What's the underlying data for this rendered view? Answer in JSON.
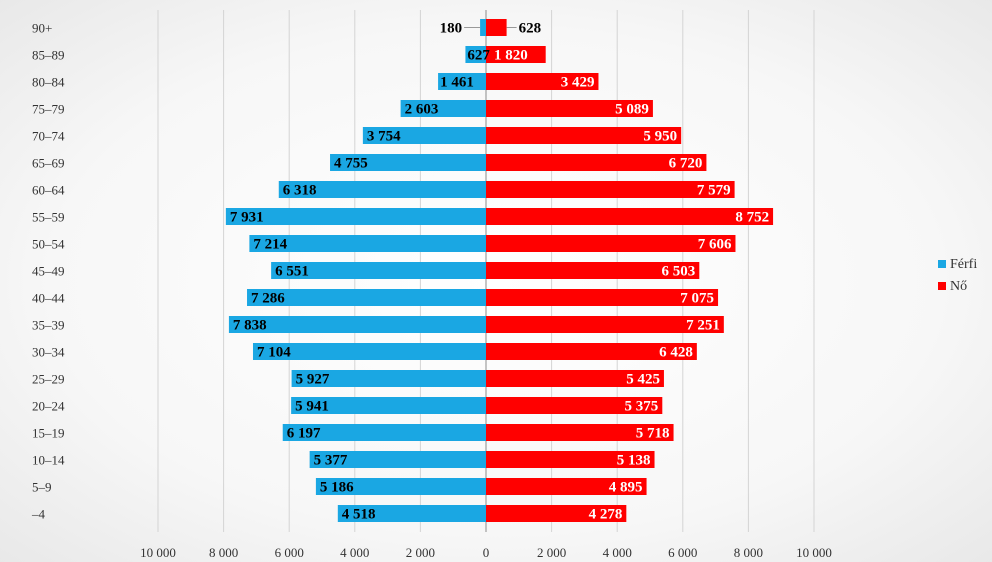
{
  "chart_data": {
    "type": "bar",
    "orientation": "horizontal",
    "layout": "population-pyramid",
    "categories": [
      "90+",
      "85–89",
      "80–84",
      "75–79",
      "70–74",
      "65–69",
      "60–64",
      "55–59",
      "50–54",
      "45–49",
      "40–44",
      "35–39",
      "30–34",
      "25–29",
      "20–24",
      "15–19",
      "10–14",
      "5–9",
      "–4"
    ],
    "series": [
      {
        "name": "Férfi",
        "color": "#1aa7e3",
        "values": [
          180,
          627,
          1461,
          2603,
          3754,
          4755,
          6318,
          7931,
          7214,
          6551,
          7286,
          7838,
          7104,
          5927,
          5941,
          6197,
          5377,
          5186,
          4518
        ],
        "labels": [
          "180",
          "627",
          "1 461",
          "2 603",
          "3 754",
          "4 755",
          "6 318",
          "7 931",
          "7 214",
          "6 551",
          "7 286",
          "7 838",
          "7 104",
          "5 927",
          "5 941",
          "6 197",
          "5 377",
          "5 186",
          "4 518"
        ]
      },
      {
        "name": "Nő",
        "color": "#ff0000",
        "values": [
          628,
          1820,
          3429,
          5089,
          5950,
          6720,
          7579,
          8752,
          7606,
          6503,
          7075,
          7251,
          6428,
          5425,
          5375,
          5718,
          5138,
          4895,
          4278
        ],
        "labels": [
          "628",
          "1 820",
          "3 429",
          "5 089",
          "5 950",
          "6 720",
          "7 579",
          "8 752",
          "7 606",
          "6 503",
          "7 075",
          "7 251",
          "6 428",
          "5 425",
          "5 375",
          "5 718",
          "5 138",
          "4 895",
          "4 278"
        ]
      }
    ],
    "x_ticks": [
      -10000,
      -8000,
      -6000,
      -4000,
      -2000,
      0,
      2000,
      4000,
      6000,
      8000,
      10000
    ],
    "x_tick_labels": [
      "10 000",
      "8 000",
      "6 000",
      "4 000",
      "2 000",
      "0",
      "2 000",
      "4 000",
      "6 000",
      "8 000",
      "10 000"
    ],
    "xlim": [
      -10000,
      10000
    ],
    "grid": "vertical",
    "legend": "right",
    "title": "",
    "xlabel": "",
    "ylabel": ""
  }
}
